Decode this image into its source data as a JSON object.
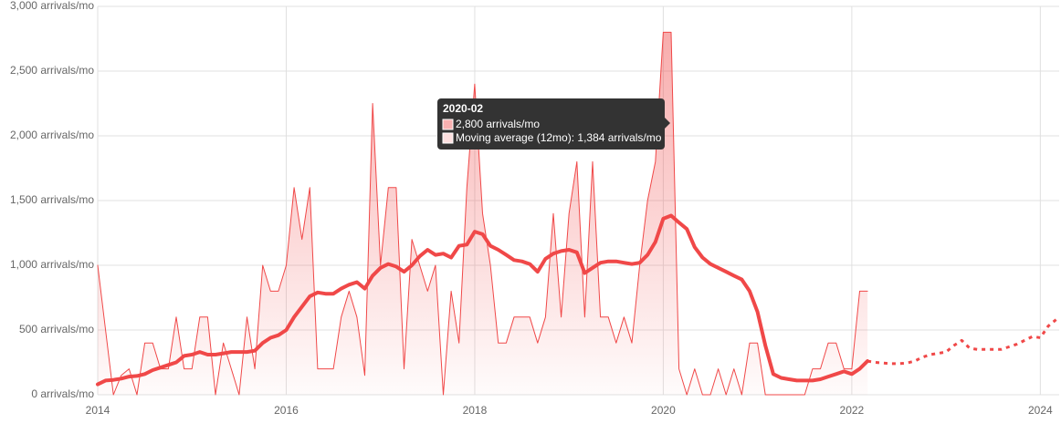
{
  "chart_data": {
    "type": "line",
    "x": [
      "2014-01",
      "2014-02",
      "2014-03",
      "2014-04",
      "2014-05",
      "2014-06",
      "2014-07",
      "2014-08",
      "2014-09",
      "2014-10",
      "2014-11",
      "2014-12",
      "2015-01",
      "2015-02",
      "2015-03",
      "2015-04",
      "2015-05",
      "2015-06",
      "2015-07",
      "2015-08",
      "2015-09",
      "2015-10",
      "2015-11",
      "2015-12",
      "2016-01",
      "2016-02",
      "2016-03",
      "2016-04",
      "2016-05",
      "2016-06",
      "2016-07",
      "2016-08",
      "2016-09",
      "2016-10",
      "2016-11",
      "2016-12",
      "2017-01",
      "2017-02",
      "2017-03",
      "2017-04",
      "2017-05",
      "2017-06",
      "2017-07",
      "2017-08",
      "2017-09",
      "2017-10",
      "2017-11",
      "2017-12",
      "2018-01",
      "2018-02",
      "2018-03",
      "2018-04",
      "2018-05",
      "2018-06",
      "2018-07",
      "2018-08",
      "2018-09",
      "2018-10",
      "2018-11",
      "2018-12",
      "2019-01",
      "2019-02",
      "2019-03",
      "2019-04",
      "2019-05",
      "2019-06",
      "2019-07",
      "2019-08",
      "2019-09",
      "2019-10",
      "2019-11",
      "2019-12",
      "2020-01",
      "2020-02",
      "2020-03",
      "2020-04",
      "2020-05",
      "2020-06",
      "2020-07",
      "2020-08",
      "2020-09",
      "2020-10",
      "2020-11",
      "2020-12",
      "2021-01",
      "2021-02",
      "2021-03",
      "2021-04",
      "2021-05",
      "2021-06",
      "2021-07",
      "2021-08",
      "2021-09",
      "2021-10",
      "2021-11",
      "2021-12",
      "2022-01",
      "2022-02",
      "2022-03"
    ],
    "series": [
      {
        "color": "#f04848",
        "area": true,
        "values": [
          1000,
          500,
          0,
          150,
          200,
          0,
          400,
          400,
          200,
          200,
          600,
          200,
          200,
          600,
          600,
          0,
          400,
          200,
          0,
          600,
          200,
          1000,
          800,
          800,
          1000,
          1600,
          1200,
          1600,
          200,
          200,
          200,
          600,
          800,
          600,
          150,
          2250,
          1000,
          1600,
          1600,
          200,
          1200,
          1000,
          800,
          1000,
          0,
          800,
          400,
          1600,
          2400,
          1400,
          1000,
          400,
          400,
          600,
          600,
          600,
          400,
          600,
          1400,
          600,
          1400,
          1800,
          600,
          1800,
          600,
          600,
          400,
          600,
          400,
          1000,
          1500,
          1800,
          2800,
          2800,
          200,
          0,
          200,
          0,
          0,
          200,
          0,
          200,
          0,
          400,
          400,
          0,
          0,
          0,
          0,
          0,
          0,
          200,
          200,
          400,
          400,
          200,
          200,
          800,
          800
        ]
      },
      {
        "name": "Moving average (12mo)",
        "color": "#f04848",
        "width": 4,
        "values": [
          80,
          110,
          115,
          125,
          140,
          145,
          160,
          190,
          210,
          230,
          250,
          300,
          310,
          330,
          310,
          310,
          320,
          330,
          330,
          330,
          340,
          400,
          440,
          460,
          500,
          600,
          680,
          760,
          790,
          780,
          780,
          820,
          850,
          870,
          820,
          920,
          980,
          1010,
          990,
          950,
          1000,
          1070,
          1120,
          1080,
          1090,
          1060,
          1150,
          1160,
          1260,
          1240,
          1150,
          1120,
          1080,
          1040,
          1030,
          1010,
          950,
          1050,
          1090,
          1110,
          1120,
          1100,
          940,
          980,
          1020,
          1030,
          1030,
          1020,
          1010,
          1020,
          1080,
          1180,
          1360,
          1384,
          1330,
          1280,
          1140,
          1060,
          1010,
          980,
          950,
          920,
          890,
          800,
          640,
          380,
          160,
          130,
          120,
          110,
          110,
          110,
          120,
          140,
          160,
          180,
          160,
          200,
          260
        ]
      },
      {
        "color": "#f04848",
        "width": 3,
        "dashed": true,
        "x": [
          "2022-03",
          "2022-04",
          "2022-05",
          "2022-06",
          "2022-07",
          "2022-08",
          "2022-09",
          "2022-10",
          "2022-11",
          "2022-12",
          "2023-01",
          "2023-02",
          "2023-03",
          "2023-04",
          "2023-05",
          "2023-06",
          "2023-07",
          "2023-08",
          "2023-09",
          "2023-10",
          "2023-11",
          "2023-12",
          "2024-01",
          "2024-02",
          "2024-03"
        ],
        "values": [
          260,
          250,
          245,
          240,
          240,
          245,
          260,
          290,
          310,
          320,
          330,
          380,
          420,
          360,
          350,
          350,
          350,
          350,
          370,
          390,
          420,
          450,
          440,
          530,
          580
        ]
      }
    ],
    "xlim": [
      2014,
      2024.2
    ],
    "xticks": [
      2014,
      2016,
      2018,
      2020,
      2022,
      2024
    ],
    "ylim": [
      0,
      3000
    ],
    "yticks": [
      {
        "value": 0,
        "label": "0 arrivals/mo"
      },
      {
        "value": 500,
        "label": "500 arrivals/mo"
      },
      {
        "value": 1000,
        "label": "1,000 arrivals/mo"
      },
      {
        "value": 1500,
        "label": "1,500 arrivals/mo"
      },
      {
        "value": 2000,
        "label": "2,000 arrivals/mo"
      },
      {
        "value": 2500,
        "label": "2,500 arrivals/mo"
      },
      {
        "value": 3000,
        "label": "3,000 arrivals/mo"
      }
    ],
    "grid": true,
    "tooltip": {
      "title": "2020-02",
      "lines": [
        "2,800 arrivals/mo",
        "Moving average (12mo): 1,384 arrivals/mo"
      ]
    }
  }
}
